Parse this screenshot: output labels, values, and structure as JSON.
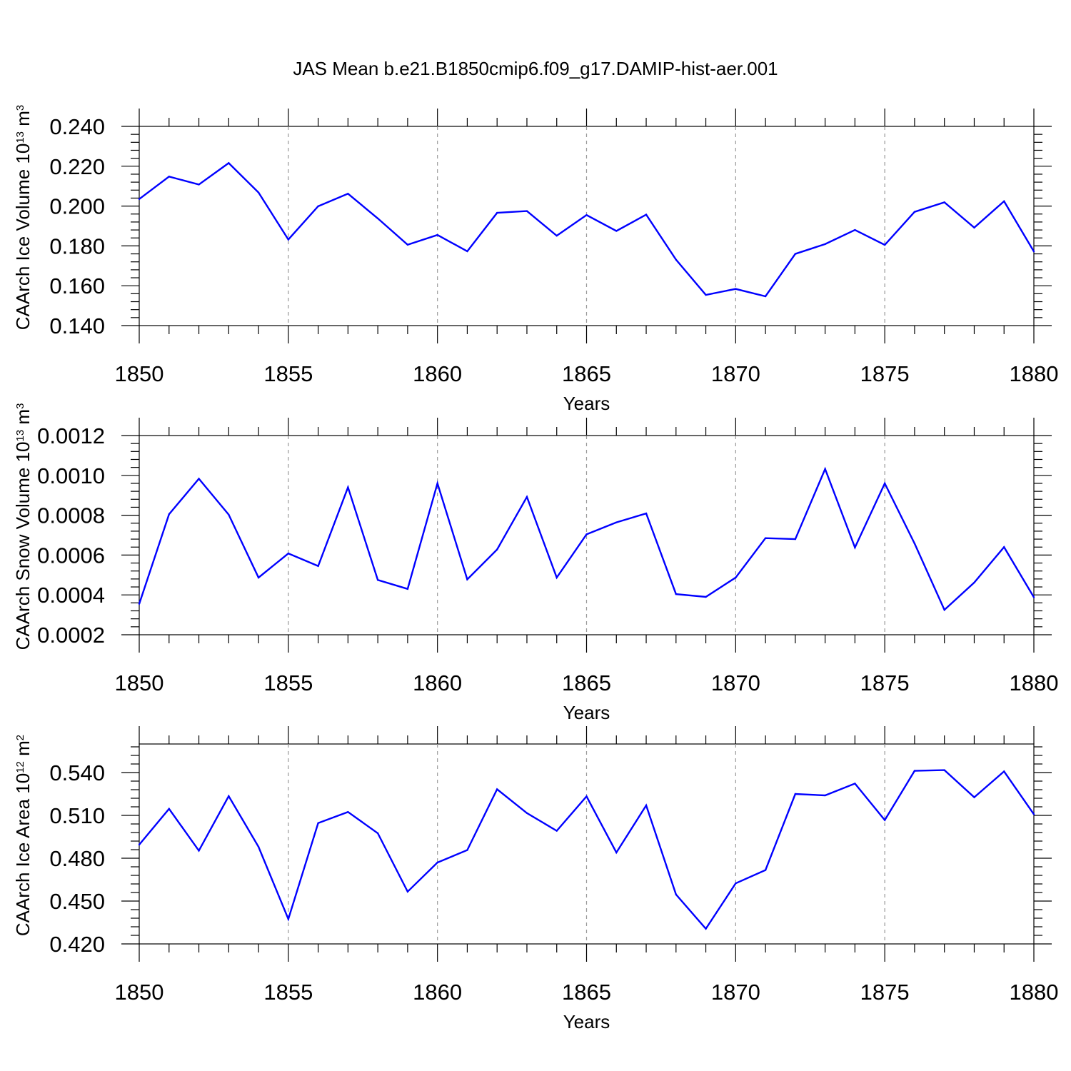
{
  "title": "JAS Mean b.e21.B1850cmip6.f09_g17.DAMIP-hist-aer.001",
  "colors": {
    "series": "#0000ff",
    "axis": "#000000",
    "grid": "#999999"
  },
  "chart_data": [
    {
      "type": "line",
      "ylabel": {
        "text": "CAArch Ice Volume 10",
        "exp": "13",
        "unit": " m",
        "unit_exp": "3"
      },
      "xlabel": "Years",
      "xlim": [
        1850,
        1880
      ],
      "ylim": [
        0.14,
        0.24
      ],
      "xticks": [
        "1850",
        "1855",
        "1860",
        "1865",
        "1870",
        "1875",
        "1880"
      ],
      "yticks": [
        "0.140",
        "0.160",
        "0.180",
        "0.200",
        "0.220",
        "0.240"
      ],
      "x": [
        1850,
        1851,
        1852,
        1853,
        1854,
        1855,
        1856,
        1857,
        1858,
        1859,
        1860,
        1861,
        1862,
        1863,
        1864,
        1865,
        1866,
        1867,
        1868,
        1869,
        1870,
        1871,
        1872,
        1873,
        1874,
        1875,
        1876,
        1877,
        1878,
        1879,
        1880
      ],
      "values": [
        0.2035,
        0.2148,
        0.2108,
        0.2216,
        0.2068,
        0.1832,
        0.1999,
        0.2062,
        0.1938,
        0.1806,
        0.1855,
        0.1773,
        0.1966,
        0.1975,
        0.1851,
        0.1955,
        0.1875,
        0.1957,
        0.1731,
        0.1554,
        0.1584,
        0.1547,
        0.176,
        0.1809,
        0.188,
        0.1805,
        0.1971,
        0.2019,
        0.1892,
        0.2024,
        0.1772
      ],
      "grid": "vertical dashed at major x ticks"
    },
    {
      "type": "line",
      "ylabel": {
        "text": "CAArch Snow Volume 10",
        "exp": "13",
        "unit": " m",
        "unit_exp": "3"
      },
      "xlabel": "Years",
      "xlim": [
        1850,
        1880
      ],
      "ylim": [
        0.0002,
        0.0012
      ],
      "xticks": [
        "1850",
        "1855",
        "1860",
        "1865",
        "1870",
        "1875",
        "1880"
      ],
      "yticks": [
        "0.0002",
        "0.0004",
        "0.0006",
        "0.0008",
        "0.0010",
        "0.0012"
      ],
      "x": [
        1850,
        1851,
        1852,
        1853,
        1854,
        1855,
        1856,
        1857,
        1858,
        1859,
        1860,
        1861,
        1862,
        1863,
        1864,
        1865,
        1866,
        1867,
        1868,
        1869,
        1870,
        1871,
        1872,
        1873,
        1874,
        1875,
        1876,
        1877,
        1878,
        1879,
        1880
      ],
      "values": [
        0.000355,
        0.000805,
        0.000983,
        0.000803,
        0.000487,
        0.000608,
        0.000545,
        0.00094,
        0.000475,
        0.00043,
        0.00096,
        0.000478,
        0.000628,
        0.000892,
        0.000487,
        0.000704,
        0.000764,
        0.000809,
        0.000404,
        0.00039,
        0.000487,
        0.000685,
        0.00068,
        0.001032,
        0.000638,
        0.00096,
        0.000658,
        0.000325,
        0.000462,
        0.00064,
        0.000388
      ],
      "grid": "vertical dashed at major x ticks"
    },
    {
      "type": "line",
      "ylabel": {
        "text": "CAArch Ice Area 10",
        "exp": "12",
        "unit": " m",
        "unit_exp": "2"
      },
      "xlabel": "Years",
      "xlim": [
        1850,
        1880
      ],
      "ylim": [
        0.42,
        0.56
      ],
      "xticks": [
        "1850",
        "1855",
        "1860",
        "1865",
        "1870",
        "1875",
        "1880"
      ],
      "yticks": [
        "0.420",
        "0.450",
        "0.480",
        "0.510",
        "0.540"
      ],
      "x": [
        1850,
        1851,
        1852,
        1853,
        1854,
        1855,
        1856,
        1857,
        1858,
        1859,
        1860,
        1861,
        1862,
        1863,
        1864,
        1865,
        1866,
        1867,
        1868,
        1869,
        1870,
        1871,
        1872,
        1873,
        1874,
        1875,
        1876,
        1877,
        1878,
        1879,
        1880
      ],
      "values": [
        0.4895,
        0.5146,
        0.4853,
        0.5235,
        0.488,
        0.4374,
        0.5046,
        0.5124,
        0.4975,
        0.4566,
        0.477,
        0.4857,
        0.5283,
        0.5116,
        0.4992,
        0.5233,
        0.484,
        0.517,
        0.4546,
        0.4306,
        0.4624,
        0.4717,
        0.525,
        0.524,
        0.5323,
        0.5067,
        0.5412,
        0.5417,
        0.5227,
        0.5408,
        0.5108
      ],
      "grid": "vertical dashed at major x ticks"
    }
  ]
}
